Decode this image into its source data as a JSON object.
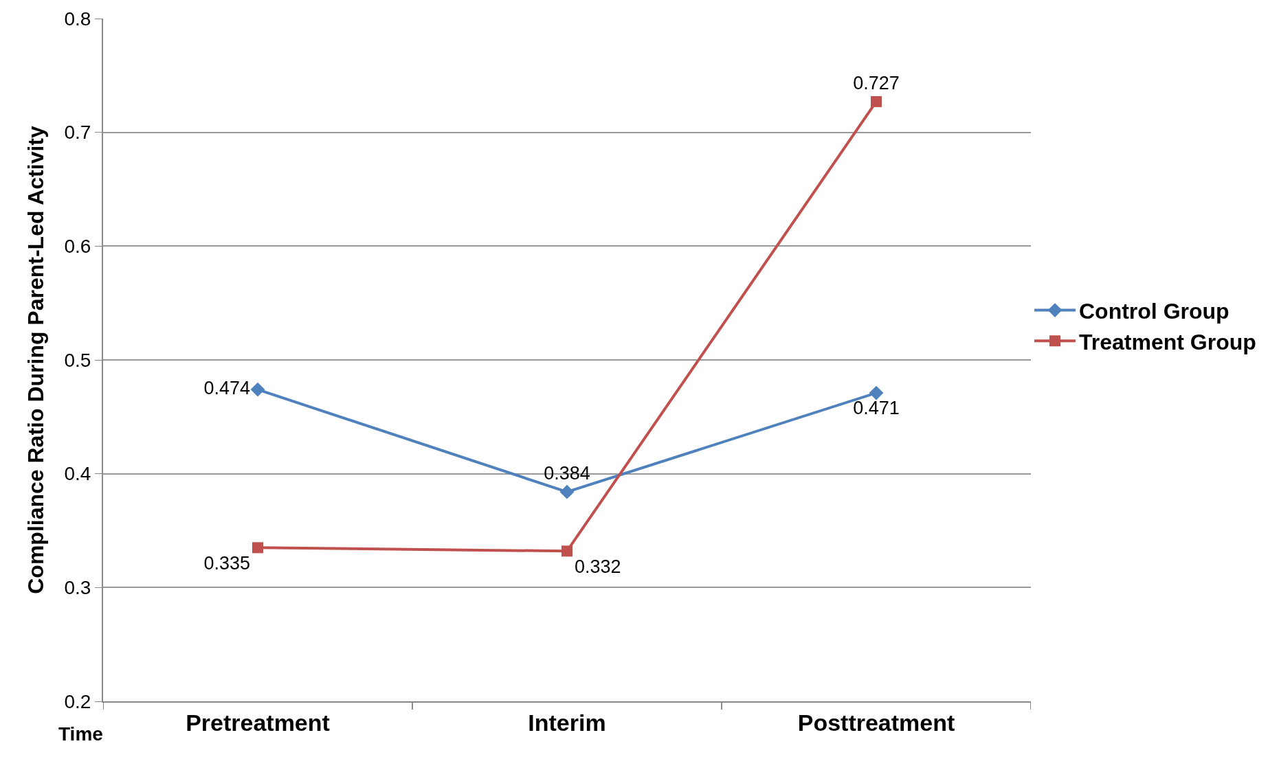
{
  "chart_data": {
    "type": "line",
    "xlabel": "Time",
    "ylabel": "Compliance Ratio During Parent-Led Activity",
    "categories": [
      "Pretreatment",
      "Interim",
      "Posttreatment"
    ],
    "series": [
      {
        "name": "Control Group",
        "color": "#4f81bd",
        "marker": "diamond",
        "values": [
          0.474,
          0.384,
          0.471
        ]
      },
      {
        "name": "Treatment Group",
        "color": "#c0504d",
        "marker": "square",
        "values": [
          0.335,
          0.332,
          0.727
        ]
      }
    ],
    "ylim": [
      0.2,
      0.8
    ],
    "yticks": [
      0.2,
      0.3,
      0.4,
      0.5,
      0.6,
      0.7,
      0.8
    ],
    "grid": "y",
    "legend": "right",
    "data_labels": true,
    "line_style": "solid"
  }
}
